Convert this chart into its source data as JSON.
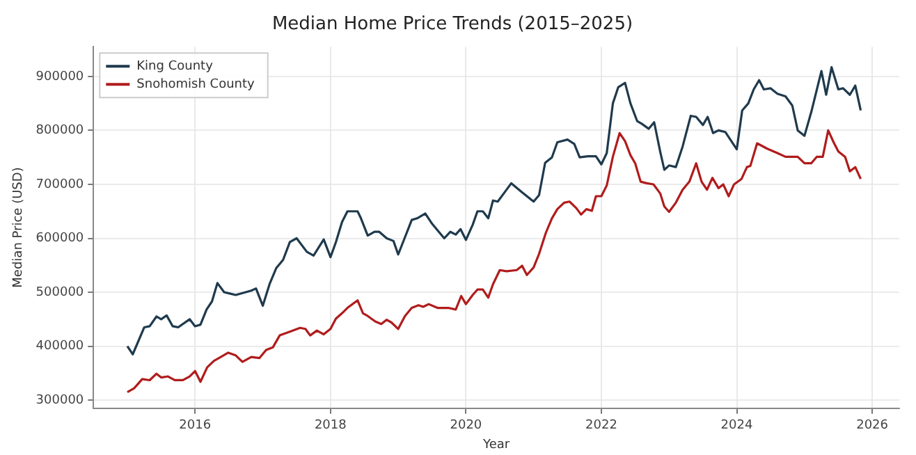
{
  "chart_data": {
    "type": "line",
    "title": "Median Home Price Trends (2015–2025)",
    "xlabel": "Year",
    "ylabel": "Median Price (USD)",
    "xlim": [
      2014.5,
      2026.4
    ],
    "xticks": [
      2016,
      2018,
      2020,
      2022,
      2024,
      2026
    ],
    "ylim": [
      285000,
      955000
    ],
    "yticks": [
      300000,
      400000,
      500000,
      600000,
      700000,
      800000,
      900000
    ],
    "grid": true,
    "legend": "top left",
    "marker": "none",
    "line_style": "solid",
    "series": [
      {
        "name": "King County",
        "color": "#1f3a4d",
        "x": [
          2015.0,
          2015.08,
          2015.25,
          2015.33,
          2015.43,
          2015.5,
          2015.58,
          2015.67,
          2015.75,
          2015.92,
          2016.0,
          2016.08,
          2016.17,
          2016.25,
          2016.33,
          2016.43,
          2016.5,
          2016.6,
          2016.83,
          2016.9,
          2017.0,
          2017.1,
          2017.2,
          2017.3,
          2017.4,
          2017.5,
          2017.65,
          2017.75,
          2017.9,
          2018.0,
          2018.08,
          2018.17,
          2018.25,
          2018.4,
          2018.45,
          2018.55,
          2018.65,
          2018.72,
          2018.83,
          2018.93,
          2019.0,
          2019.1,
          2019.2,
          2019.28,
          2019.4,
          2019.5,
          2019.6,
          2019.68,
          2019.77,
          2019.85,
          2019.92,
          2020.0,
          2020.1,
          2020.17,
          2020.25,
          2020.33,
          2020.4,
          2020.47,
          2020.57,
          2020.67,
          2020.83,
          2021.0,
          2021.08,
          2021.17,
          2021.27,
          2021.35,
          2021.5,
          2021.6,
          2021.68,
          2021.8,
          2021.92,
          2022.0,
          2022.08,
          2022.17,
          2022.25,
          2022.35,
          2022.43,
          2022.53,
          2022.6,
          2022.7,
          2022.78,
          2022.87,
          2022.93,
          2023.0,
          2023.1,
          2023.2,
          2023.32,
          2023.4,
          2023.5,
          2023.57,
          2023.65,
          2023.73,
          2023.83,
          2024.0,
          2024.08,
          2024.17,
          2024.25,
          2024.33,
          2024.4,
          2024.5,
          2024.6,
          2024.72,
          2024.82,
          2024.9,
          2025.0,
          2025.1,
          2025.25,
          2025.32,
          2025.4,
          2025.5,
          2025.57,
          2025.67,
          2025.75,
          2025.83
        ],
        "values": [
          400000,
          385000,
          435000,
          437000,
          455000,
          450000,
          457000,
          437000,
          435000,
          450000,
          437000,
          440000,
          468000,
          483000,
          517000,
          500000,
          498000,
          495000,
          503000,
          507000,
          475000,
          515000,
          545000,
          560000,
          593000,
          600000,
          575000,
          568000,
          598000,
          565000,
          593000,
          630000,
          650000,
          650000,
          637000,
          605000,
          612000,
          612000,
          600000,
          595000,
          570000,
          602000,
          634000,
          637000,
          646000,
          627000,
          612000,
          600000,
          612000,
          607000,
          617000,
          597000,
          625000,
          650000,
          650000,
          637000,
          670000,
          668000,
          685000,
          702000,
          685000,
          668000,
          680000,
          740000,
          750000,
          778000,
          783000,
          775000,
          750000,
          752000,
          752000,
          737000,
          758000,
          850000,
          880000,
          888000,
          850000,
          817000,
          812000,
          803000,
          815000,
          760000,
          727000,
          735000,
          732000,
          770000,
          827000,
          825000,
          810000,
          825000,
          795000,
          800000,
          797000,
          765000,
          837000,
          850000,
          876000,
          893000,
          876000,
          878000,
          868000,
          863000,
          846000,
          800000,
          790000,
          834000,
          910000,
          866000,
          917000,
          876000,
          878000,
          866000,
          883000,
          837000
        ]
      },
      {
        "name": "Snohomish County",
        "color": "#b01c1c",
        "x": [
          2015.0,
          2015.1,
          2015.22,
          2015.33,
          2015.43,
          2015.5,
          2015.6,
          2015.7,
          2015.82,
          2015.92,
          2016.0,
          2016.08,
          2016.18,
          2016.28,
          2016.38,
          2016.49,
          2016.6,
          2016.7,
          2016.83,
          2016.95,
          2017.05,
          2017.15,
          2017.25,
          2017.4,
          2017.55,
          2017.63,
          2017.7,
          2017.8,
          2017.9,
          2018.0,
          2018.08,
          2018.17,
          2018.25,
          2018.4,
          2018.48,
          2018.55,
          2018.66,
          2018.75,
          2018.83,
          2018.9,
          2019.0,
          2019.1,
          2019.2,
          2019.3,
          2019.37,
          2019.45,
          2019.58,
          2019.74,
          2019.85,
          2019.93,
          2020.0,
          2020.1,
          2020.17,
          2020.25,
          2020.33,
          2020.4,
          2020.5,
          2020.6,
          2020.75,
          2020.83,
          2020.9,
          2021.0,
          2021.08,
          2021.18,
          2021.27,
          2021.35,
          2021.45,
          2021.53,
          2021.63,
          2021.7,
          2021.78,
          2021.86,
          2021.92,
          2022.0,
          2022.08,
          2022.17,
          2022.27,
          2022.35,
          2022.43,
          2022.5,
          2022.58,
          2022.67,
          2022.77,
          2022.87,
          2022.93,
          2023.0,
          2023.1,
          2023.2,
          2023.3,
          2023.4,
          2023.48,
          2023.56,
          2023.64,
          2023.73,
          2023.8,
          2023.88,
          2023.96,
          2024.07,
          2024.15,
          2024.2,
          2024.3,
          2024.45,
          2024.6,
          2024.72,
          2024.9,
          2025.0,
          2025.1,
          2025.18,
          2025.27,
          2025.35,
          2025.43,
          2025.5,
          2025.6,
          2025.67,
          2025.75,
          2025.83
        ],
        "values": [
          315000,
          322000,
          339000,
          337000,
          349000,
          342000,
          344000,
          337000,
          337000,
          344000,
          354000,
          334000,
          361000,
          373000,
          380000,
          388000,
          383000,
          371000,
          380000,
          378000,
          393000,
          398000,
          420000,
          427000,
          434000,
          432000,
          420000,
          429000,
          422000,
          432000,
          451000,
          461000,
          471000,
          485000,
          461000,
          456000,
          446000,
          441000,
          449000,
          444000,
          432000,
          456000,
          471000,
          476000,
          473000,
          478000,
          471000,
          471000,
          468000,
          493000,
          478000,
          495000,
          505000,
          505000,
          490000,
          515000,
          541000,
          539000,
          541000,
          549000,
          532000,
          546000,
          571000,
          610000,
          637000,
          654000,
          666000,
          668000,
          656000,
          644000,
          654000,
          651000,
          678000,
          678000,
          698000,
          751000,
          795000,
          780000,
          754000,
          739000,
          705000,
          702000,
          700000,
          683000,
          659000,
          649000,
          666000,
          690000,
          705000,
          739000,
          705000,
          690000,
          712000,
          693000,
          700000,
          678000,
          700000,
          710000,
          732000,
          734000,
          776000,
          766000,
          758000,
          751000,
          751000,
          739000,
          739000,
          751000,
          751000,
          800000,
          778000,
          761000,
          751000,
          724000,
          732000,
          710000
        ]
      }
    ]
  }
}
